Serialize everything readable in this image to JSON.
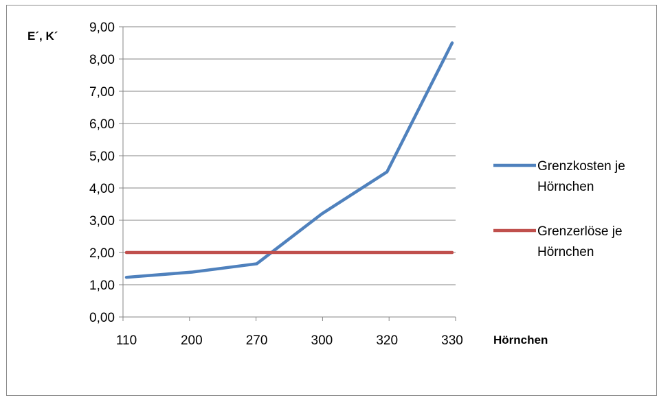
{
  "chart_data": {
    "type": "line",
    "categories": [
      "110",
      "200",
      "270",
      "300",
      "320",
      "330"
    ],
    "series": [
      {
        "name": "Grenzkosten je Hörnchen",
        "legend_lines": [
          "Grenzkosten je",
          "Hörnchen"
        ],
        "color": "#4f81bd",
        "values": [
          1.23,
          1.39,
          1.65,
          3.2,
          4.5,
          8.5
        ]
      },
      {
        "name": "Grenzerlöse je Hörnchen",
        "legend_lines": [
          "Grenzerlöse je",
          "Hörnchen"
        ],
        "color": "#c0504d",
        "values": [
          2.0,
          2.0,
          2.0,
          2.0,
          2.0,
          2.0
        ]
      }
    ],
    "title": "",
    "xlabel": "Hörnchen",
    "ylabel": "E´, K´",
    "ylim": [
      0,
      9
    ],
    "yticks": [
      "0,00",
      "1,00",
      "2,00",
      "3,00",
      "4,00",
      "5,00",
      "6,00",
      "7,00",
      "8,00",
      "9,00"
    ],
    "grid": true,
    "legend_position": "right",
    "colors": {
      "grid": "#868686",
      "axis": "#868686",
      "text": "#000000"
    }
  }
}
